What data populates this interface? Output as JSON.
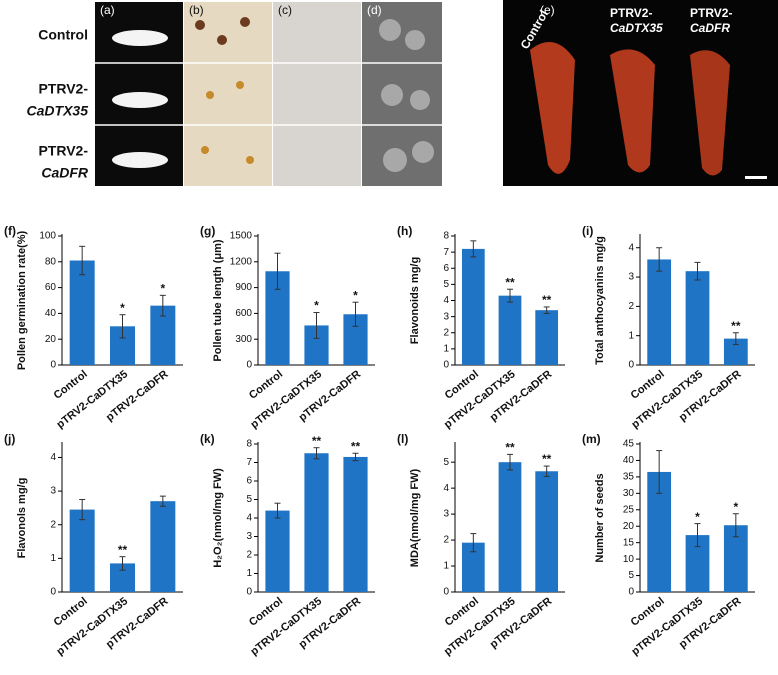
{
  "photo_panels": {
    "labels": [
      "(a)",
      "(b)",
      "(c)",
      "(d)"
    ],
    "rows": [
      [
        "Control"
      ],
      [
        "PTRV2-",
        "CaDTX35"
      ],
      [
        "PTRV2-",
        "CaDFR"
      ]
    ]
  },
  "fruit_panel": {
    "label": "(e)",
    "groups": [
      [
        "Control"
      ],
      [
        "PTRV2-",
        "CaDTX35"
      ],
      [
        "PTRV2-",
        "CaDFR"
      ]
    ]
  },
  "chart_data": [
    {
      "type": "bar",
      "label": "(f)",
      "y_label": "Pollen germination rate(%)",
      "categories": [
        "Control",
        "pTRV2-CaDTX35",
        "pTRV2-CaDFR"
      ],
      "values": [
        81,
        30,
        46
      ],
      "errors": [
        11,
        9,
        8
      ],
      "annotations": [
        null,
        "*",
        "*"
      ],
      "color": "#1f74c6",
      "ylim": [
        0,
        100
      ],
      "yticks": [
        0,
        20,
        40,
        60,
        80,
        100
      ]
    },
    {
      "type": "bar",
      "label": "(g)",
      "y_label": "Pollen tube length (μm)",
      "categories": [
        "Control",
        "pTRV2-CaDTX35",
        "pTRV2-CaDFR"
      ],
      "values": [
        1090,
        460,
        590
      ],
      "errors": [
        210,
        150,
        140
      ],
      "annotations": [
        null,
        "*",
        "*"
      ],
      "color": "#1f74c6",
      "ylim": [
        0,
        1500
      ],
      "yticks": [
        0,
        300,
        600,
        900,
        1200,
        1500
      ]
    },
    {
      "type": "bar",
      "label": "(h)",
      "y_label": "Flavonoids mg/g",
      "categories": [
        "Control",
        "pTRV2-CaDTX35",
        "pTRV2-CaDFR"
      ],
      "values": [
        7.2,
        4.3,
        3.4
      ],
      "errors": [
        0.5,
        0.4,
        0.2
      ],
      "annotations": [
        null,
        "**",
        "**"
      ],
      "color": "#1f74c6",
      "ylim": [
        0,
        8
      ],
      "yticks": [
        0,
        1,
        2,
        3,
        4,
        5,
        6,
        7,
        8
      ]
    },
    {
      "type": "bar",
      "label": "(i)",
      "y_label": "Total anthocyanins mg/g",
      "categories": [
        "Control",
        "pTRV2-CaDTX35",
        "pTRV2-CaDFR"
      ],
      "values": [
        3.6,
        3.2,
        0.9
      ],
      "errors": [
        0.4,
        0.3,
        0.2
      ],
      "annotations": [
        null,
        null,
        "**"
      ],
      "color": "#1f74c6",
      "ylim": [
        0,
        4.4
      ],
      "yticks": [
        0,
        1,
        2,
        3,
        4
      ]
    },
    {
      "type": "bar",
      "label": "(j)",
      "y_label": "Flavonols mg/g",
      "categories": [
        "Control",
        "pTRV2-CaDTX35",
        "pTRV2-CaDFR"
      ],
      "values": [
        2.45,
        0.85,
        2.7
      ],
      "errors": [
        0.3,
        0.2,
        0.15
      ],
      "annotations": [
        null,
        "**",
        null
      ],
      "color": "#1f74c6",
      "ylim": [
        0,
        4.4
      ],
      "yticks": [
        0,
        1,
        2,
        3,
        4
      ]
    },
    {
      "type": "bar",
      "label": "(k)",
      "y_label": "H₂O₂(nmol/mg FW)",
      "categories": [
        "Control",
        "pTRV2-CaDTX35",
        "pTRV2-CaDFR"
      ],
      "values": [
        4.4,
        7.5,
        7.3
      ],
      "errors": [
        0.4,
        0.3,
        0.2
      ],
      "annotations": [
        null,
        "**",
        "**"
      ],
      "color": "#1f74c6",
      "ylim": [
        0,
        8
      ],
      "yticks": [
        0,
        1,
        2,
        3,
        4,
        5,
        6,
        7,
        8
      ]
    },
    {
      "type": "bar",
      "label": "(l)",
      "y_label": "MDA(nmol/mg FW)",
      "categories": [
        "Control",
        "pTRV2-CaDTX35",
        "pTRV2-CaDFR"
      ],
      "values": [
        1.9,
        5.0,
        4.65
      ],
      "errors": [
        0.35,
        0.3,
        0.2
      ],
      "annotations": [
        null,
        "**",
        "**"
      ],
      "color": "#1f74c6",
      "ylim": [
        0,
        5.7
      ],
      "yticks": [
        0,
        1,
        2,
        3,
        4,
        5
      ]
    },
    {
      "type": "bar",
      "label": "(m)",
      "y_label": "Number of seeds",
      "categories": [
        "Control",
        "pTRV2-CaDTX35",
        "pTRV2-CaDFR"
      ],
      "values": [
        36.5,
        17.3,
        20.3
      ],
      "errors": [
        6.5,
        3.5,
        3.5
      ],
      "annotations": [
        null,
        "*",
        "*"
      ],
      "color": "#1f74c6",
      "ylim": [
        0,
        45
      ],
      "yticks": [
        0,
        5,
        10,
        15,
        20,
        25,
        30,
        35,
        40,
        45
      ]
    }
  ]
}
